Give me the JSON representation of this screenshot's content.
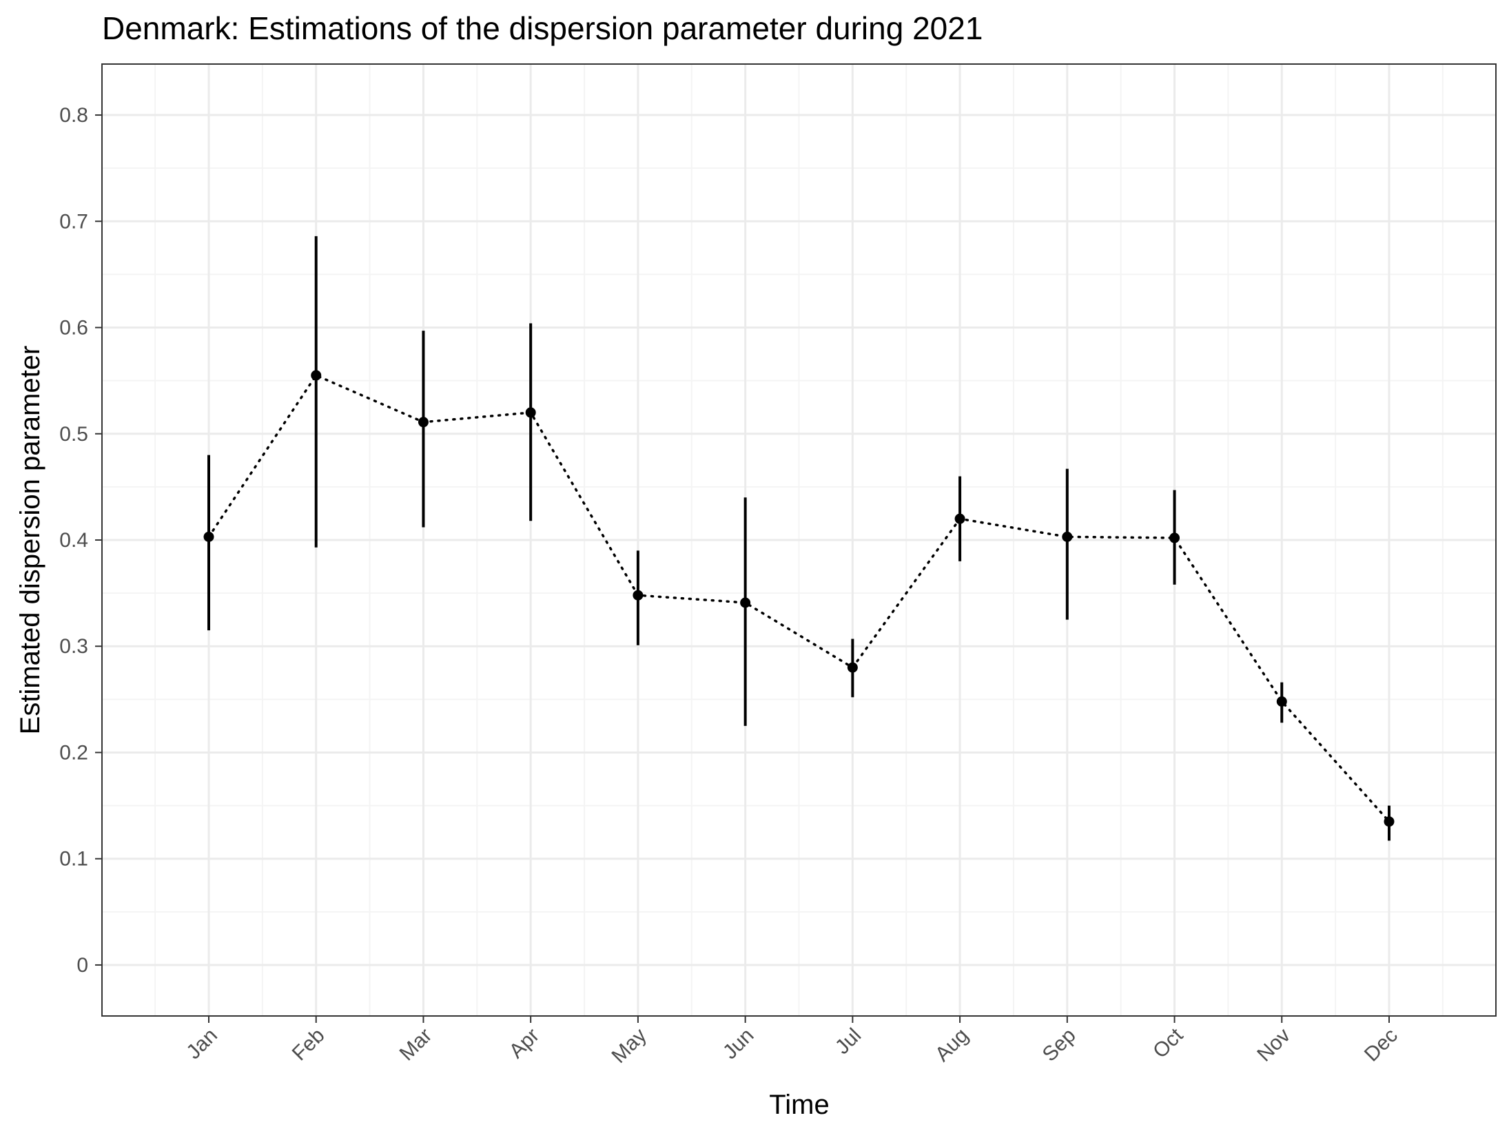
{
  "chart_data": {
    "type": "line",
    "title": "Denmark: Estimations of the dispersion parameter during 2021",
    "xlabel": "Time",
    "ylabel": "Estimated dispersion parameter",
    "categories": [
      "Jan",
      "Feb",
      "Mar",
      "Apr",
      "May",
      "Jun",
      "Jul",
      "Aug",
      "Sep",
      "Oct",
      "Nov",
      "Dec"
    ],
    "ylim": [
      -0.048,
      0.848
    ],
    "yticks": [
      0,
      0.1,
      0.2,
      0.3,
      0.4,
      0.5,
      0.6,
      0.7,
      0.8
    ],
    "ytick_labels": [
      "0",
      "0.1",
      "0.2",
      "0.3",
      "0.4",
      "0.5",
      "0.6",
      "0.7",
      "0.8"
    ],
    "grid": true,
    "series": [
      {
        "values": [
          0.403,
          0.555,
          0.511,
          0.52,
          0.348,
          0.341,
          0.28,
          0.42,
          0.403,
          0.402,
          0.248,
          0.135
        ],
        "lower": [
          0.315,
          0.393,
          0.412,
          0.418,
          0.301,
          0.225,
          0.252,
          0.38,
          0.325,
          0.358,
          0.228,
          0.117
        ],
        "upper": [
          0.48,
          0.686,
          0.597,
          0.604,
          0.39,
          0.44,
          0.307,
          0.46,
          0.467,
          0.447,
          0.266,
          0.15
        ],
        "line_style": "dotted",
        "color": "#000000"
      }
    ]
  },
  "colors": {
    "panel_border": "#333333",
    "grid_major": "#ebebeb",
    "grid_minor": "#f4f4f4",
    "tick_text": "#4d4d4d"
  }
}
